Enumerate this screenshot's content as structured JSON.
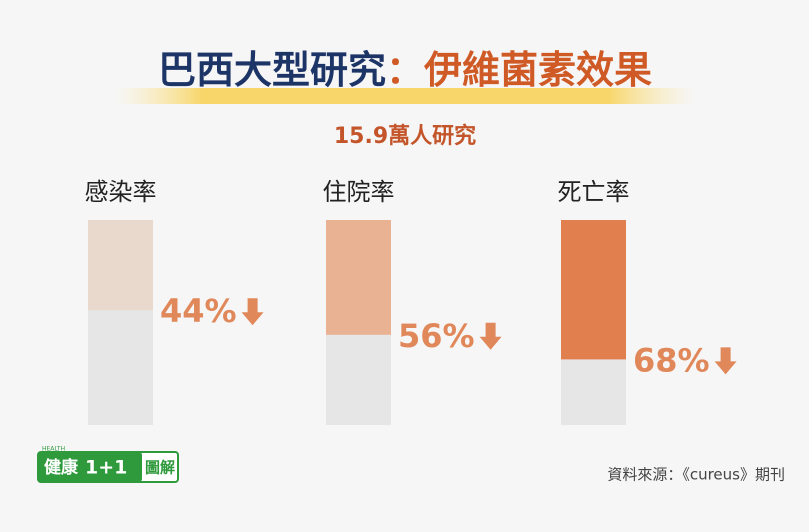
{
  "chart_data": {
    "type": "bar",
    "title": {
      "main": "巴西大型研究",
      "highlight": "：伊維菌素效果"
    },
    "subtitle": "15.9萬人研究",
    "categories": [
      "感染率",
      "住院率",
      "死亡率"
    ],
    "values": [
      44,
      56,
      68
    ],
    "value_labels": [
      "44%",
      "56%",
      "68%"
    ],
    "colors": [
      "#e9d9cd",
      "#e8b293",
      "#e27f4f"
    ],
    "ylim": [
      0,
      100
    ],
    "logo": {
      "tag": "HEALTH",
      "name": "健康",
      "number": "1+1",
      "suffix": "圖解"
    },
    "source": "資料來源：《cureus》期刊"
  }
}
